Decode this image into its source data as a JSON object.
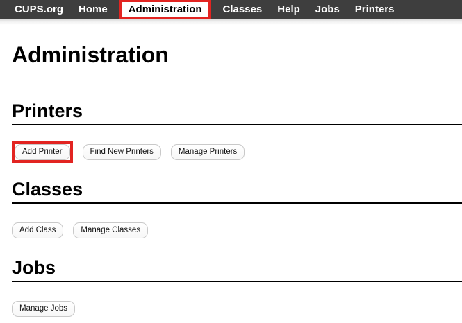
{
  "navbar": {
    "items": [
      {
        "label": "CUPS.org"
      },
      {
        "label": "Home"
      },
      {
        "label": "Administration",
        "active": true,
        "annotated": true
      },
      {
        "label": "Classes"
      },
      {
        "label": "Help"
      },
      {
        "label": "Jobs"
      },
      {
        "label": "Printers"
      }
    ]
  },
  "page": {
    "title": "Administration"
  },
  "sections": [
    {
      "title": "Printers",
      "buttons": [
        {
          "label": "Add Printer",
          "annotated": true
        },
        {
          "label": "Find New Printers"
        },
        {
          "label": "Manage Printers"
        }
      ]
    },
    {
      "title": "Classes",
      "buttons": [
        {
          "label": "Add Class"
        },
        {
          "label": "Manage Classes"
        }
      ]
    },
    {
      "title": "Jobs",
      "buttons": [
        {
          "label": "Manage Jobs"
        }
      ]
    }
  ],
  "colors": {
    "annotation_red": "#e22421",
    "navbar_bg": "#3e3e3e",
    "heading_rule": "#000000",
    "button_border": "#c9c9c9"
  }
}
